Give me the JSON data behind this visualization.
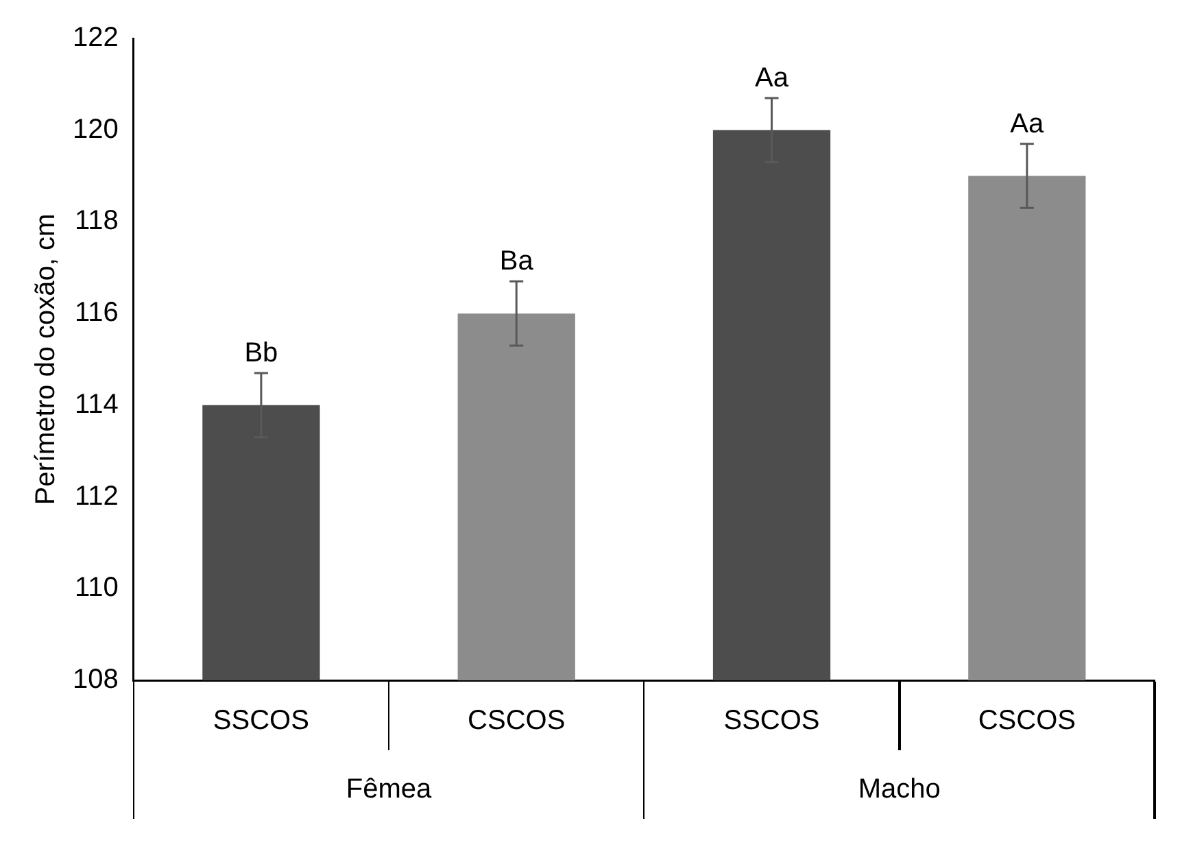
{
  "chart_data": {
    "type": "bar",
    "ylabel": "Perímetro do coxão, cm",
    "categories": [
      "SSCOS",
      "CSCOS",
      "SSCOS",
      "CSCOS"
    ],
    "values": [
      114,
      116,
      120,
      119
    ],
    "errors": [
      0.7,
      0.7,
      0.7,
      0.7
    ],
    "value_labels": [
      "Bb",
      "Ba",
      "Aa",
      "Aa"
    ],
    "colors": [
      "#4d4d4d",
      "#8c8c8c",
      "#4d4d4d",
      "#8c8c8c"
    ],
    "annotations": [
      "Fêmea",
      "Macho"
    ],
    "ylim": [
      108,
      122
    ],
    "yticks": [
      108,
      110,
      112,
      114,
      116,
      118,
      120,
      122
    ],
    "grid": false,
    "legend": false
  }
}
